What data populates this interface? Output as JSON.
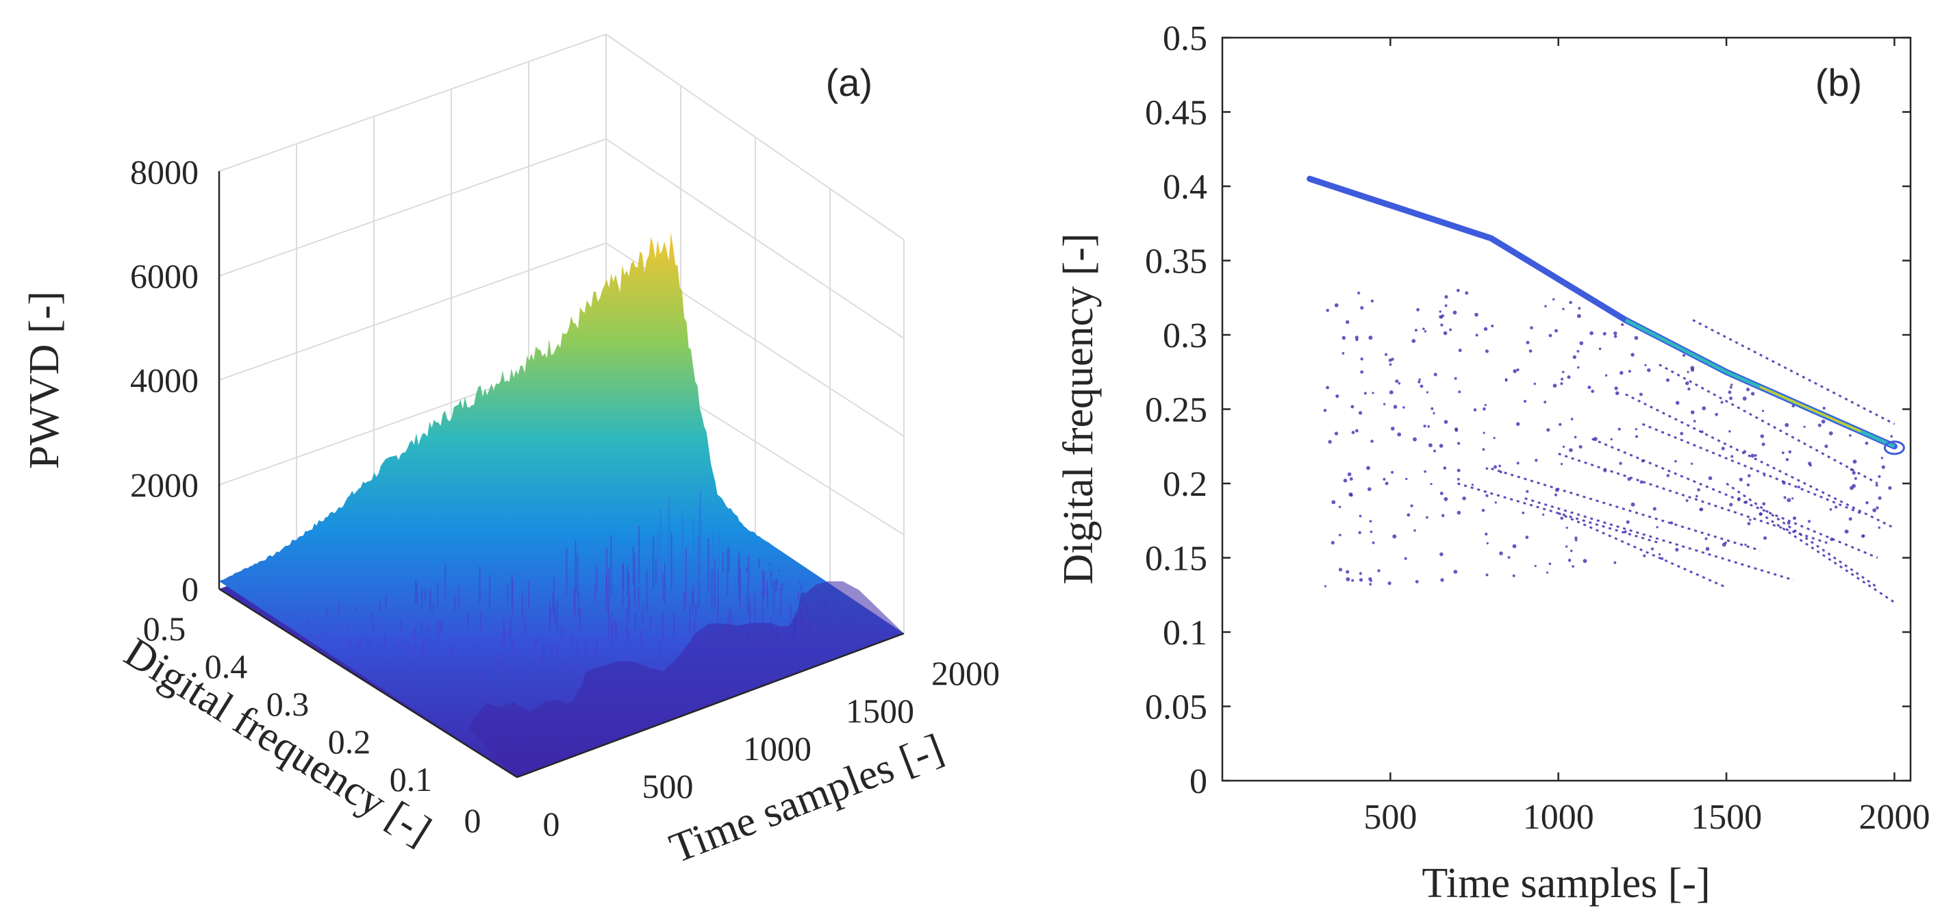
{
  "chart_data": [
    {
      "type": "surface3d",
      "panel_label": "(a)",
      "zlabel": "PWVD [-]",
      "ylabel": "Digital frequency [-]",
      "xlabel": "Time samples [-]",
      "z_ticks": [
        "0",
        "2000",
        "4000",
        "6000",
        "8000"
      ],
      "y_ticks": [
        "0",
        "0.1",
        "0.2",
        "0.3",
        "0.4",
        "0.5"
      ],
      "x_ticks": [
        "0",
        "500",
        "1000",
        "1500",
        "2000"
      ],
      "zlim": [
        0,
        8000
      ],
      "ylim": [
        0,
        0.5
      ],
      "xlim": [
        0,
        2000
      ],
      "colormap": "parula",
      "ridge_profile": {
        "time": [
          0,
          200,
          400,
          600,
          800,
          1000,
          1200,
          1400,
          1500,
          1600,
          1650,
          1700,
          1800,
          1900,
          2000
        ],
        "pwvd": [
          150,
          600,
          1300,
          2200,
          3000,
          3700,
          4300,
          5300,
          5700,
          6200,
          6000,
          4000,
          1200,
          500,
          100
        ]
      },
      "colors": {
        "low": "#3e26a8",
        "mid": "#2eb7be",
        "high": "#f9fb15",
        "grid": "#dcdcdc",
        "axis": "#262626"
      }
    },
    {
      "type": "contour",
      "panel_label": "(b)",
      "ylabel": "Digital frequency [-]",
      "xlabel": "Time samples [-]",
      "y_ticks": [
        "0",
        "0.05",
        "0.1",
        "0.15",
        "0.2",
        "0.25",
        "0.3",
        "0.35",
        "0.4",
        "0.45",
        "0.5"
      ],
      "x_ticks": [
        "500",
        "1000",
        "1500",
        "2000"
      ],
      "ylim": [
        0,
        0.5
      ],
      "xlim": [
        0,
        2048
      ],
      "main_ridge": {
        "x": [
          260,
          800,
          1200,
          1500,
          1800,
          2000
        ],
        "y": [
          0.405,
          0.365,
          0.31,
          0.275,
          0.245,
          0.225
        ]
      },
      "secondary_lines": [
        {
          "x": [
            1100,
            1950
          ],
          "y": [
            0.23,
            0.15
          ]
        },
        {
          "x": [
            1000,
            1800
          ],
          "y": [
            0.22,
            0.16
          ]
        },
        {
          "x": [
            900,
            1700
          ],
          "y": [
            0.19,
            0.135
          ]
        },
        {
          "x": [
            800,
            1600
          ],
          "y": [
            0.21,
            0.155
          ]
        },
        {
          "x": [
            1300,
            1950
          ],
          "y": [
            0.28,
            0.2
          ]
        },
        {
          "x": [
            1200,
            2000
          ],
          "y": [
            0.26,
            0.17
          ]
        },
        {
          "x": [
            1400,
            2000
          ],
          "y": [
            0.31,
            0.24
          ]
        },
        {
          "x": [
            1500,
            1950
          ],
          "y": [
            0.2,
            0.13
          ]
        },
        {
          "x": [
            1600,
            2000
          ],
          "y": [
            0.18,
            0.12
          ]
        },
        {
          "x": [
            700,
            1300
          ],
          "y": [
            0.2,
            0.16
          ]
        },
        {
          "x": [
            1000,
            1500
          ],
          "y": [
            0.18,
            0.13
          ]
        },
        {
          "x": [
            1250,
            1900
          ],
          "y": [
            0.24,
            0.18
          ]
        }
      ],
      "colors": {
        "ridge": "#3e5bdc",
        "ridge_mid": "#2eb7be",
        "ridge_hot": "#d9c530",
        "secondary": "#3d2fb0",
        "axis": "#262626"
      }
    }
  ]
}
